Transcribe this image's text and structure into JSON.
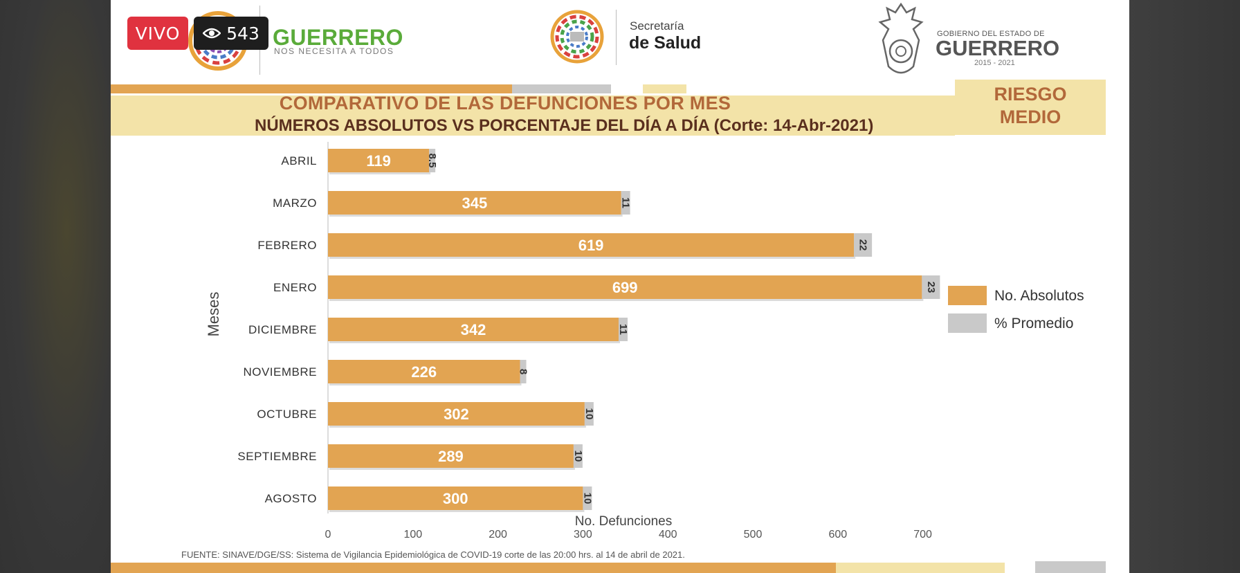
{
  "badges": {
    "live": "VIVO",
    "viewers": "543"
  },
  "header": {
    "guerrero_word": "GUERRERO",
    "guerrero_sub": "NOS NECESITA A TODOS",
    "salud_top": "Secretaría",
    "salud_main": "de Salud",
    "gob_top": "GOBIERNO DEL ESTADO DE",
    "gob_main": "GUERRERO",
    "gob_years": "2015 - 2021"
  },
  "title": {
    "line1": "COMPARATIVO DE LAS DEFUNCIONES POR MES",
    "line2": "NÚMEROS ABSOLUTOS VS PORCENTAJE DEL DÍA A DÍA   (Corte: 14-Abr-2021)"
  },
  "risk": {
    "line1": "RIESGO",
    "line2": "MEDIO"
  },
  "colors": {
    "absolute": "#e2a452",
    "percent": "#c9c9c9",
    "accent_orange": "#e2a452",
    "band_yellow": "#f3e3a8",
    "title_brown": "#b2683a",
    "live_red": "#e0323f"
  },
  "icons": {
    "viewers": "eye-icon"
  },
  "chart_data": {
    "type": "bar",
    "orientation": "horizontal",
    "stacked": true,
    "categories": [
      "ABRIL",
      "MARZO",
      "FEBRERO",
      "ENERO",
      "DICIEMBRE",
      "NOVIEMBRE",
      "OCTUBRE",
      "SEPTIEMBRE",
      "AGOSTO"
    ],
    "series": [
      {
        "name": "No. Absolutos",
        "values": [
          119,
          345,
          619,
          699,
          342,
          226,
          302,
          289,
          300
        ]
      },
      {
        "name": "% Promedio",
        "values": [
          8.5,
          11,
          22,
          23,
          11,
          8,
          10,
          10,
          10
        ]
      }
    ],
    "xlabel": "No. Defunciones",
    "ylabel": "Meses",
    "xlim": [
      0,
      700
    ],
    "xticks": [
      0,
      100,
      200,
      300,
      400,
      500,
      600,
      700
    ],
    "legend": "right",
    "grid": false
  },
  "footer": {
    "source": "FUENTE: SINAVE/DGE/SS: Sistema de Vigilancia Epidemiológica de COVID-19 corte de las 20:00 hrs. al 14 de  abril de 2021."
  }
}
